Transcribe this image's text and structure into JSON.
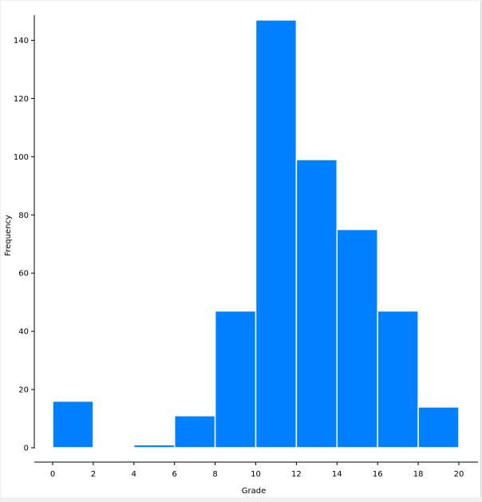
{
  "chart_data": {
    "type": "bar",
    "title": "",
    "xlabel": "Grade",
    "ylabel": "Frequency",
    "bins": [
      {
        "x0": 0,
        "x1": 2,
        "value": 16
      },
      {
        "x0": 2,
        "x1": 4,
        "value": 0
      },
      {
        "x0": 4,
        "x1": 6,
        "value": 1
      },
      {
        "x0": 6,
        "x1": 8,
        "value": 11
      },
      {
        "x0": 8,
        "x1": 10,
        "value": 47
      },
      {
        "x0": 10,
        "x1": 12,
        "value": 147
      },
      {
        "x0": 12,
        "x1": 14,
        "value": 99
      },
      {
        "x0": 14,
        "x1": 16,
        "value": 75
      },
      {
        "x0": 16,
        "x1": 18,
        "value": 47
      },
      {
        "x0": 18,
        "x1": 20,
        "value": 14
      }
    ],
    "xlim": [
      0,
      20
    ],
    "ylim": [
      0,
      147
    ],
    "xticks": [
      0,
      2,
      4,
      6,
      8,
      10,
      12,
      14,
      16,
      18,
      20
    ],
    "yticks": [
      0,
      20,
      40,
      60,
      80,
      100,
      120,
      140
    ],
    "grid": false,
    "legend": "none",
    "bar_color": "#0080ff",
    "bar_edge_color": "#ffffff"
  }
}
